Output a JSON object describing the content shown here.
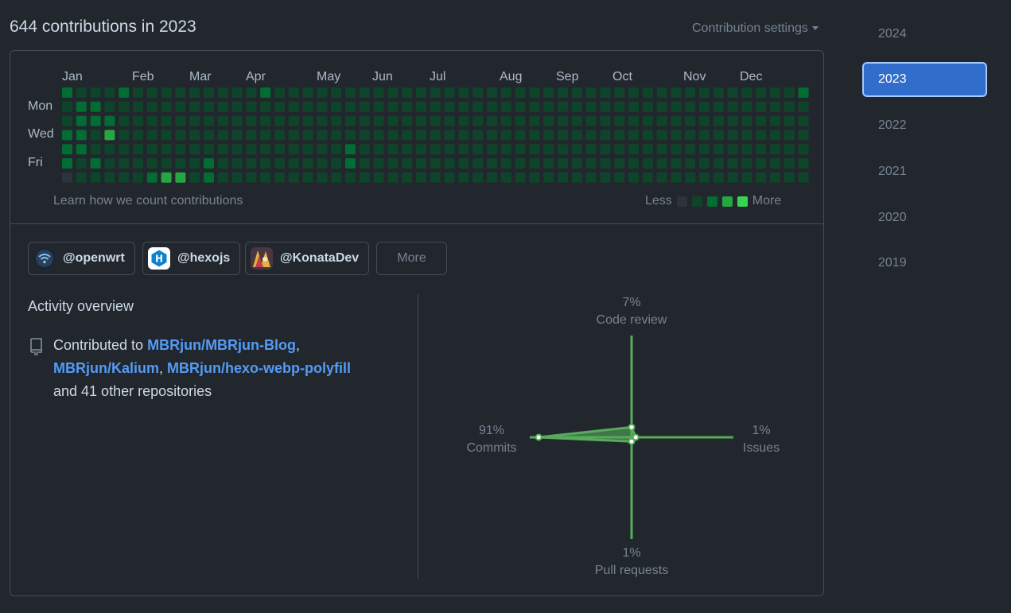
{
  "header": {
    "title": "644 contributions in 2023",
    "settings_label": "Contribution settings"
  },
  "calendar": {
    "months": [
      "Jan",
      "Feb",
      "Mar",
      "Apr",
      "May",
      "Jun",
      "Jul",
      "Aug",
      "Sep",
      "Oct",
      "Nov",
      "Dec"
    ],
    "day_labels": [
      "Mon",
      "Wed",
      "Fri"
    ],
    "learn_link": "Learn how we count contributions",
    "legend_less": "Less",
    "legend_more": "More",
    "level_colors": [
      "#2d333b",
      "#0e4429",
      "#006d32",
      "#26a641",
      "#39d353"
    ],
    "weeks": 53,
    "start_day": 0,
    "end_day": 0,
    "intensity_levels": [
      [
        2,
        1,
        1,
        2,
        2,
        2,
        0
      ],
      [
        1,
        2,
        2,
        2,
        2,
        1,
        1
      ],
      [
        1,
        2,
        2,
        1,
        1,
        2,
        1
      ],
      [
        1,
        1,
        2,
        3,
        1,
        1,
        1
      ],
      [
        2,
        1,
        1,
        1,
        1,
        1,
        1
      ],
      [
        1,
        1,
        1,
        1,
        1,
        1,
        1
      ],
      [
        1,
        1,
        1,
        1,
        1,
        1,
        2
      ],
      [
        1,
        1,
        1,
        1,
        1,
        1,
        3
      ],
      [
        1,
        1,
        1,
        1,
        1,
        1,
        3
      ],
      [
        1,
        1,
        1,
        1,
        1,
        1,
        1
      ],
      [
        1,
        1,
        1,
        1,
        1,
        2,
        2
      ],
      [
        1,
        1,
        1,
        1,
        1,
        1,
        1
      ],
      [
        1,
        1,
        1,
        1,
        1,
        1,
        1
      ],
      [
        1,
        1,
        1,
        1,
        1,
        1,
        1
      ],
      [
        2,
        1,
        1,
        1,
        1,
        1,
        1
      ],
      [
        1,
        1,
        1,
        1,
        1,
        1,
        1
      ],
      [
        1,
        1,
        1,
        1,
        1,
        1,
        1
      ],
      [
        1,
        1,
        1,
        1,
        1,
        1,
        1
      ],
      [
        1,
        1,
        1,
        1,
        1,
        1,
        1
      ],
      [
        1,
        1,
        1,
        1,
        1,
        1,
        1
      ],
      [
        1,
        1,
        1,
        1,
        2,
        2,
        1
      ],
      [
        1,
        1,
        1,
        1,
        1,
        1,
        1
      ],
      [
        1,
        1,
        1,
        1,
        1,
        1,
        1
      ],
      [
        1,
        1,
        1,
        1,
        1,
        1,
        1
      ],
      [
        1,
        1,
        1,
        1,
        1,
        1,
        1
      ],
      [
        1,
        1,
        1,
        1,
        1,
        1,
        1
      ],
      [
        1,
        1,
        1,
        1,
        1,
        1,
        1
      ],
      [
        1,
        1,
        1,
        1,
        1,
        1,
        1
      ],
      [
        1,
        1,
        1,
        1,
        1,
        1,
        1
      ],
      [
        1,
        1,
        1,
        1,
        1,
        1,
        1
      ],
      [
        1,
        1,
        1,
        1,
        1,
        1,
        1
      ],
      [
        1,
        1,
        1,
        1,
        1,
        1,
        1
      ],
      [
        1,
        1,
        1,
        1,
        1,
        1,
        1
      ],
      [
        1,
        1,
        1,
        1,
        1,
        1,
        1
      ],
      [
        1,
        1,
        1,
        1,
        1,
        1,
        1
      ],
      [
        1,
        1,
        1,
        1,
        1,
        1,
        1
      ],
      [
        1,
        1,
        1,
        1,
        1,
        1,
        1
      ],
      [
        1,
        1,
        1,
        1,
        1,
        1,
        1
      ],
      [
        1,
        1,
        1,
        1,
        1,
        1,
        1
      ],
      [
        1,
        1,
        1,
        1,
        1,
        1,
        1
      ],
      [
        1,
        1,
        1,
        1,
        1,
        1,
        1
      ],
      [
        1,
        1,
        1,
        1,
        1,
        1,
        1
      ],
      [
        1,
        1,
        1,
        1,
        1,
        1,
        1
      ],
      [
        1,
        1,
        1,
        1,
        1,
        1,
        1
      ],
      [
        1,
        1,
        1,
        1,
        1,
        1,
        1
      ],
      [
        1,
        1,
        1,
        1,
        1,
        1,
        1
      ],
      [
        1,
        1,
        1,
        1,
        1,
        1,
        1
      ],
      [
        1,
        1,
        1,
        1,
        1,
        1,
        1
      ],
      [
        1,
        1,
        1,
        1,
        1,
        1,
        1
      ],
      [
        1,
        1,
        1,
        1,
        1,
        1,
        1
      ],
      [
        1,
        1,
        1,
        1,
        1,
        1,
        1
      ],
      [
        1,
        1,
        1,
        1,
        1,
        1,
        1
      ],
      [
        2,
        1,
        1,
        1,
        1,
        1,
        1
      ]
    ]
  },
  "organizations": [
    {
      "name": "@openwrt",
      "icon": "wifi-icon"
    },
    {
      "name": "@hexojs",
      "icon": "hexo-logo-icon"
    },
    {
      "name": "@KonataDev",
      "icon": "konata-avatar-icon"
    }
  ],
  "org_more_label": "More",
  "activity": {
    "title": "Activity overview",
    "contributed_prefix": "Contributed to ",
    "repos": [
      "MBRjun/MBRjun-Blog",
      "MBRjun/Kalium",
      "MBRjun/hexo-webp-polyfill"
    ],
    "separator": ", ",
    "suffix": "and 41 other repositories"
  },
  "radar": {
    "code_review": {
      "pct": "7%",
      "label": "Code review",
      "value": 7
    },
    "issues": {
      "pct": "1%",
      "label": "Issues",
      "value": 1
    },
    "pull_requests": {
      "pct": "1%",
      "label": "Pull requests",
      "value": 1
    },
    "commits": {
      "pct": "91%",
      "label": "Commits",
      "value": 91
    },
    "axis_color": "#57ab5a",
    "fill_color": "#57ab5a"
  },
  "years": [
    "2024",
    "2023",
    "2022",
    "2021",
    "2020",
    "2019"
  ],
  "selected_year": "2023"
}
